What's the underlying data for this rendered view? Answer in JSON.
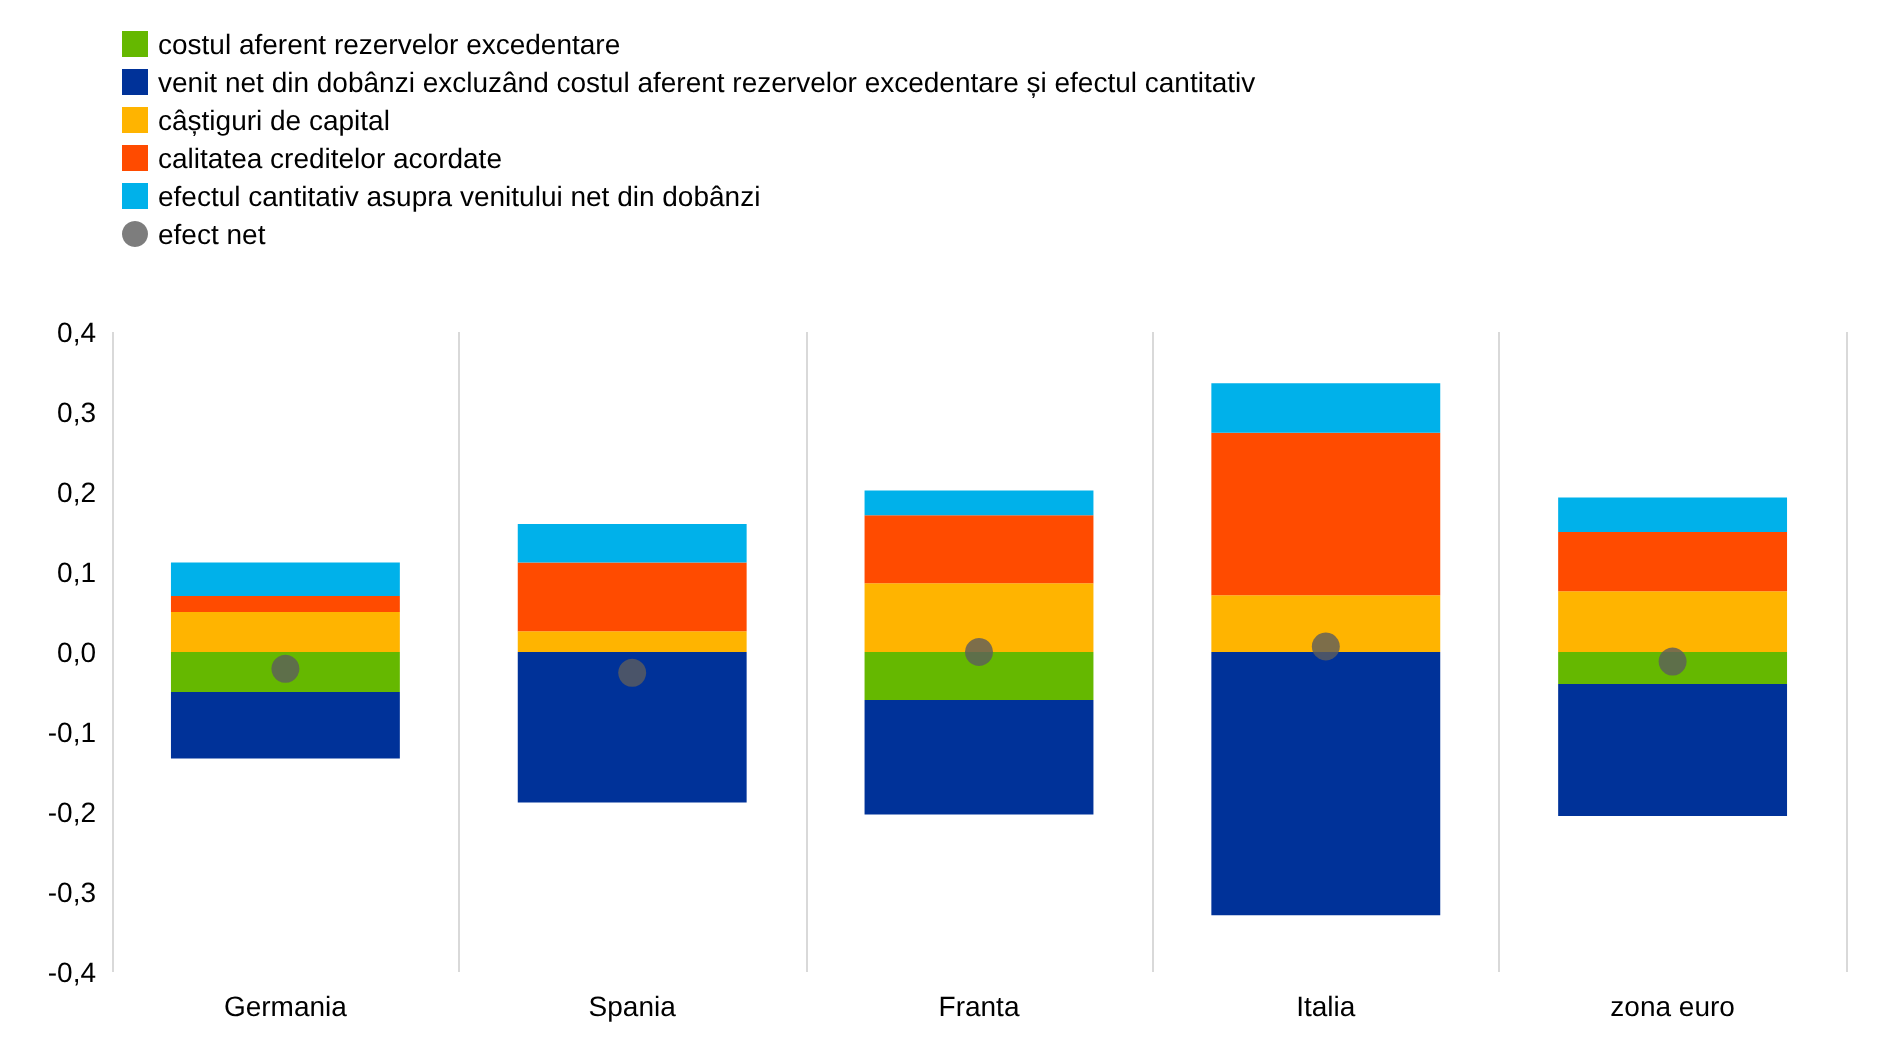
{
  "chart_data": {
    "type": "bar",
    "stacked": true,
    "categories": [
      "Germania",
      "Spania",
      "Franta",
      "Italia",
      "zona euro"
    ],
    "series": [
      {
        "name": "costul aferent rezervelor excedentare",
        "color": "#65b800",
        "values": [
          -0.05,
          0,
          -0.06,
          0,
          -0.04
        ]
      },
      {
        "name": "venit net din dobânzi excluzând costul aferent rezervelor excedentare și efectul cantitativ",
        "color": "#003299",
        "values": [
          -0.083,
          -0.188,
          -0.143,
          -0.329,
          -0.165
        ]
      },
      {
        "name": "câștiguri de capital",
        "color": "#ffb400",
        "values": [
          0.05,
          0.026,
          0.086,
          0.071,
          0.076
        ]
      },
      {
        "name": "calitatea creditelor acordate",
        "color": "#ff4b00",
        "values": [
          0.02,
          0.086,
          0.085,
          0.203,
          0.074
        ]
      },
      {
        "name": "efectul cantitativ asupra venitului net din dobânzi",
        "color": "#00b1ea",
        "values": [
          0.042,
          0.048,
          0.031,
          0.062,
          0.043
        ]
      },
      {
        "name": "efect net",
        "type": "scatter",
        "color": "#5c5c5c",
        "values": [
          -0.021,
          -0.026,
          0,
          0.007,
          -0.012
        ]
      }
    ],
    "ylim": [
      -0.4,
      0.4
    ],
    "yticks": [
      {
        "value": -0.4,
        "label": "-0,4"
      },
      {
        "value": -0.3,
        "label": "-0,3"
      },
      {
        "value": -0.2,
        "label": "-0,2"
      },
      {
        "value": -0.1,
        "label": "-0,1"
      },
      {
        "value": 0,
        "label": "0,0"
      },
      {
        "value": 0.1,
        "label": "0,1"
      },
      {
        "value": 0.2,
        "label": "0,2"
      },
      {
        "value": 0.3,
        "label": "0,3"
      },
      {
        "value": 0.4,
        "label": "0,4"
      }
    ],
    "grid": "x",
    "legend": "top left",
    "marker": "circle"
  }
}
